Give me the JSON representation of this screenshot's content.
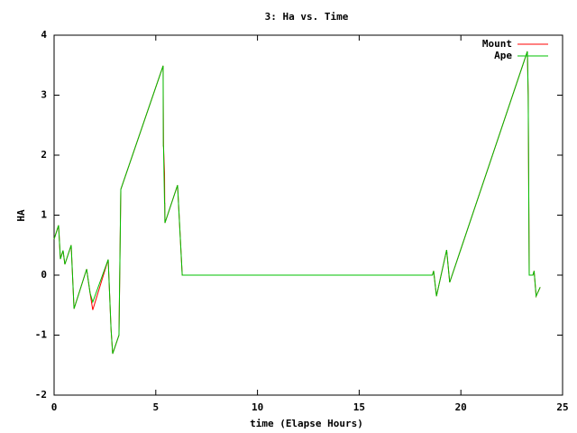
{
  "chart_data": {
    "type": "line",
    "title": "3: Ha vs. Time",
    "x_label": "time (Elapse Hours)",
    "y_label": "HA",
    "x": [
      0,
      0.22,
      0.31,
      0.44,
      0.53,
      0.84,
      0.98,
      1.6,
      1.77,
      1.9,
      2.66,
      2.8,
      2.88,
      3.19,
      3.28,
      5.36,
      5.37,
      5.38,
      5.43,
      5.44,
      5.45,
      6.07,
      6.3,
      18.6,
      18.66,
      18.8,
      19.3,
      19.45,
      23.27,
      23.31,
      23.36,
      23.54,
      23.6,
      23.7,
      23.9
    ],
    "series": [
      {
        "name": "Mount",
        "color": "#ff0000",
        "values": [
          0.6,
          0.83,
          0.27,
          0.41,
          0.18,
          0.5,
          -0.56,
          0.1,
          -0.3,
          -0.58,
          0.26,
          -0.9,
          -1.31,
          -1.0,
          1.43,
          3.49,
          2.75,
          2.15,
          1.7,
          1.2,
          0.87,
          1.5,
          0,
          0,
          0.07,
          -0.35,
          0.42,
          -0.12,
          3.73,
          3.0,
          0,
          0,
          0.07,
          -0.35,
          -0.2
        ]
      },
      {
        "name": "Ape",
        "color": "#00c000",
        "values": [
          0.6,
          0.83,
          0.27,
          0.41,
          0.18,
          0.5,
          -0.56,
          0.1,
          -0.3,
          -0.45,
          0.26,
          -0.9,
          -1.31,
          -1.0,
          1.43,
          3.49,
          2.15,
          2.15,
          1.2,
          1.2,
          0.87,
          1.5,
          0,
          0,
          0.07,
          -0.35,
          0.42,
          -0.12,
          3.73,
          3.0,
          0,
          0,
          0.07,
          -0.35,
          -0.2
        ]
      }
    ],
    "xlim": [
      0,
      25
    ],
    "ylim": [
      -2,
      4
    ],
    "xticks": [
      0,
      5,
      10,
      15,
      20,
      25
    ],
    "yticks": [
      -2,
      -1,
      0,
      1,
      2,
      3,
      4
    ],
    "legend": "top-right"
  }
}
